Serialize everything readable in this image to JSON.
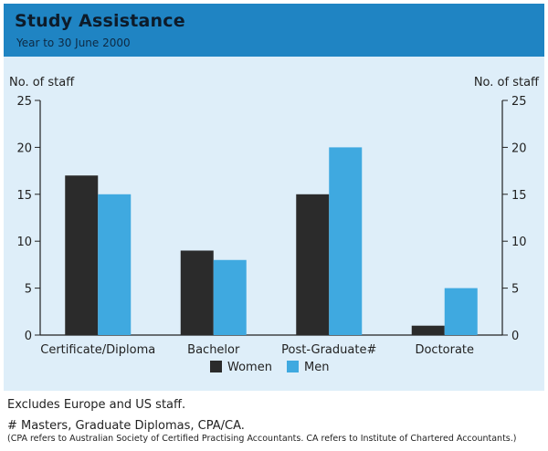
{
  "header": {
    "title": "Study Assistance",
    "subtitle": "Year to 30 June 2000"
  },
  "colors": {
    "women": "#2b2b2b",
    "men": "#3fa9e0",
    "panel": "#deeef9",
    "header": "#1f84c3"
  },
  "chart_data": {
    "type": "bar",
    "categories": [
      "Certificate/Diploma",
      "Bachelor",
      "Post-Graduate#",
      "Doctorate"
    ],
    "series": [
      {
        "name": "Women",
        "values": [
          17,
          9,
          15,
          1
        ]
      },
      {
        "name": "Men",
        "values": [
          15,
          8,
          20,
          5
        ]
      }
    ],
    "ylabel_left": "No. of staff",
    "ylabel_right": "No. of staff",
    "ylim": [
      0,
      25
    ],
    "yticks": [
      "0",
      "5",
      "10",
      "15",
      "20",
      "25"
    ],
    "grid": false,
    "legend_placement": "bottom-center"
  },
  "notes": {
    "line1": "Excludes Europe and US staff.",
    "line2": "# Masters, Graduate Diplomas, CPA/CA.",
    "line3": "(CPA refers to Australian Society of Certified Practising Accountants. CA refers to Institute of Chartered Accountants.)"
  }
}
